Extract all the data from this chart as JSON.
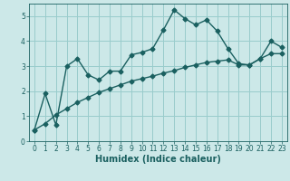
{
  "xlabel": "Humidex (Indice chaleur)",
  "background_color": "#cce8e8",
  "grid_color": "#99cccc",
  "line_color": "#1a6060",
  "x_data": [
    0,
    1,
    2,
    3,
    4,
    5,
    6,
    7,
    8,
    9,
    10,
    11,
    12,
    13,
    14,
    15,
    16,
    17,
    18,
    19,
    20,
    21,
    22,
    23
  ],
  "y1_data": [
    0.45,
    1.9,
    0.65,
    3.0,
    3.3,
    2.65,
    2.45,
    2.8,
    2.8,
    3.45,
    3.55,
    3.7,
    4.45,
    5.25,
    4.9,
    4.65,
    4.85,
    4.4,
    3.7,
    3.1,
    3.05,
    3.3,
    4.0,
    3.75
  ],
  "y2_data": [
    0.45,
    0.7,
    1.05,
    1.3,
    1.55,
    1.75,
    1.95,
    2.1,
    2.25,
    2.4,
    2.5,
    2.6,
    2.72,
    2.82,
    2.95,
    3.05,
    3.15,
    3.2,
    3.25,
    3.05,
    3.05,
    3.3,
    3.5,
    3.5
  ],
  "ylim": [
    0,
    5.5
  ],
  "xlim": [
    -0.5,
    23.5
  ],
  "yticks": [
    0,
    1,
    2,
    3,
    4,
    5
  ],
  "xticks": [
    0,
    1,
    2,
    3,
    4,
    5,
    6,
    7,
    8,
    9,
    10,
    11,
    12,
    13,
    14,
    15,
    16,
    17,
    18,
    19,
    20,
    21,
    22,
    23
  ],
  "marker_size": 2.5,
  "line_width": 1.0,
  "tick_fontsize": 5.5,
  "xlabel_fontsize": 7.0
}
